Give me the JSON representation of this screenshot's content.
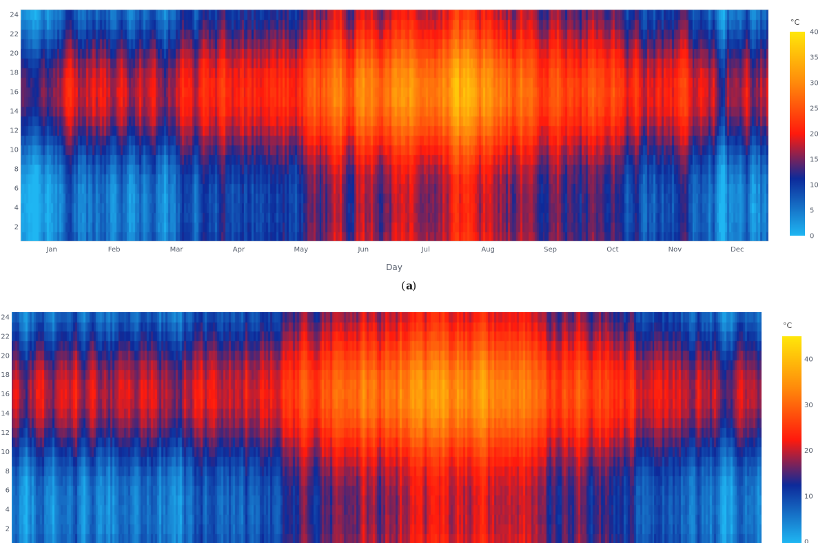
{
  "chart_data": [
    {
      "type": "heatmap",
      "panel_label": "a",
      "xlabel": "Day",
      "ylabel": "",
      "x_tick_labels": [
        "Jan",
        "Feb",
        "Mar",
        "Apr",
        "May",
        "Jun",
        "Jul",
        "Aug",
        "Sep",
        "Oct",
        "Nov",
        "Dec"
      ],
      "y_ticks": [
        2,
        4,
        6,
        8,
        10,
        12,
        14,
        16,
        18,
        20,
        22,
        24
      ],
      "ylim": [
        1,
        24
      ],
      "colorbar": {
        "unit": "°C",
        "range": [
          0,
          40
        ],
        "ticks": [
          0,
          5,
          10,
          15,
          20,
          25,
          30,
          35,
          40
        ]
      },
      "colorscale": [
        "#1fb6f2",
        "#0d2a9a",
        "#ff1a0d",
        "#ffe70a"
      ],
      "daily_max_by_month": [
        17,
        18,
        18,
        20,
        24,
        30,
        33,
        32,
        26,
        24,
        19,
        17
      ],
      "daily_min_by_month": [
        4,
        4,
        6,
        8,
        12,
        16,
        19,
        18,
        15,
        12,
        7,
        4
      ]
    },
    {
      "type": "heatmap",
      "panel_label": "",
      "xlabel": "",
      "ylabel": "",
      "x_tick_labels": [],
      "y_ticks": [
        2,
        4,
        6,
        8,
        10,
        12,
        14,
        16,
        18,
        20,
        22,
        24
      ],
      "ylim": [
        1,
        24
      ],
      "colorbar": {
        "unit": "°C",
        "range": [
          0,
          45
        ],
        "ticks": [
          0,
          10,
          20,
          30,
          40
        ]
      },
      "colorscale": [
        "#1fb6f2",
        "#0d2a9a",
        "#ff1a0d",
        "#ffe70a"
      ],
      "daily_max_by_month": [
        19,
        19,
        20,
        22,
        26,
        32,
        35,
        34,
        29,
        25,
        20,
        18
      ],
      "daily_min_by_month": [
        4,
        4,
        6,
        9,
        13,
        17,
        20,
        19,
        16,
        12,
        7,
        4
      ]
    }
  ]
}
